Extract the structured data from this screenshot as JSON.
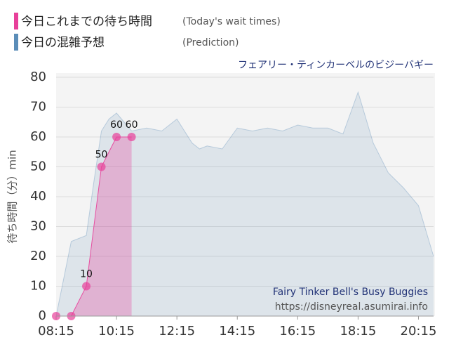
{
  "chart_data": {
    "type": "area",
    "legend": [
      {
        "label": "今日これまでの待ち時間",
        "note": "(Today's wait times)",
        "color": "#e8409a"
      },
      {
        "label": "今日の混雑予想",
        "note": "(Prediction)",
        "color": "#5b8db8"
      }
    ],
    "subtitle": "フェアリー・ティンカーベルのビジーバギー",
    "watermark": [
      "Fairy Tinker Bell's Busy Buggies",
      "https://disneyreal.asumirai.info"
    ],
    "y_label": "待ち時間（分）min",
    "xlim": [
      "08:15",
      "20:45"
    ],
    "xticks": [
      "08:15",
      "10:15",
      "12:15",
      "14:15",
      "16:15",
      "18:15",
      "20:15"
    ],
    "ylim": [
      0,
      80
    ],
    "yticks": [
      0,
      10,
      20,
      30,
      40,
      50,
      60,
      70,
      80
    ],
    "grid": true,
    "series": [
      {
        "name": "今日の混雑予想",
        "color": "#5b8db8",
        "x": [
          "08:15",
          "08:45",
          "09:15",
          "09:30",
          "09:45",
          "10:00",
          "10:15",
          "10:30",
          "10:45",
          "11:15",
          "11:45",
          "12:15",
          "12:45",
          "13:00",
          "13:15",
          "13:45",
          "14:15",
          "14:45",
          "15:15",
          "15:45",
          "16:15",
          "16:45",
          "17:15",
          "17:45",
          "18:15",
          "18:45",
          "19:15",
          "19:45",
          "20:15",
          "20:45"
        ],
        "values": [
          0,
          25,
          27,
          45,
          62,
          66,
          68,
          65,
          62,
          63,
          62,
          66,
          58,
          56,
          57,
          56,
          63,
          62,
          63,
          62,
          64,
          63,
          63,
          61,
          75,
          58,
          48,
          43,
          37,
          20
        ]
      },
      {
        "name": "今日これまでの待ち時間",
        "color": "#e8409a",
        "x": [
          "08:15",
          "08:45",
          "09:15",
          "09:45",
          "10:15",
          "10:45"
        ],
        "values": [
          0,
          0,
          10,
          50,
          60,
          60
        ],
        "value_labels": [
          null,
          null,
          "10",
          "50",
          "60",
          "60"
        ]
      }
    ]
  }
}
